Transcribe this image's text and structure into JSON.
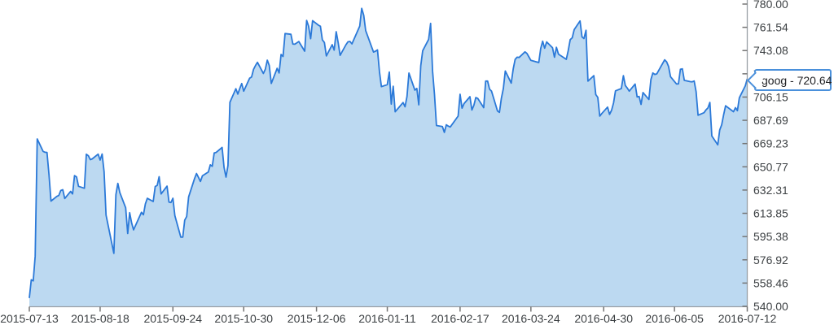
{
  "chart_data": {
    "type": "area",
    "title": "",
    "grid": false,
    "legend": false,
    "x_axis": {
      "range": [
        "2015-07-13",
        "2016-07-12"
      ],
      "tick_labels": [
        "2015-07-13",
        "2015-08-18",
        "2015-09-24",
        "2015-10-30",
        "2015-12-06",
        "2016-01-11",
        "2016-02-17",
        "2016-03-24",
        "2016-04-30",
        "2016-06-05",
        "2016-07-12"
      ]
    },
    "y_axis": {
      "range": [
        540,
        780
      ],
      "tick_labels": [
        "780.00",
        "761.54",
        "743.08",
        "724.62",
        "706.15",
        "687.69",
        "669.23",
        "650.77",
        "632.31",
        "613.85",
        "595.38",
        "576.92",
        "558.46",
        "540.00"
      ]
    },
    "series": [
      {
        "name": "goog",
        "dates": [
          "2015-07-13",
          "2015-07-14",
          "2015-07-15",
          "2015-07-16",
          "2015-07-17",
          "2015-07-20",
          "2015-07-21",
          "2015-07-22",
          "2015-07-23",
          "2015-07-24",
          "2015-07-27",
          "2015-07-28",
          "2015-07-29",
          "2015-07-30",
          "2015-07-31",
          "2015-08-03",
          "2015-08-04",
          "2015-08-05",
          "2015-08-06",
          "2015-08-07",
          "2015-08-10",
          "2015-08-11",
          "2015-08-12",
          "2015-08-13",
          "2015-08-14",
          "2015-08-17",
          "2015-08-18",
          "2015-08-19",
          "2015-08-20",
          "2015-08-21",
          "2015-08-24",
          "2015-08-25",
          "2015-08-26",
          "2015-08-27",
          "2015-08-28",
          "2015-08-31",
          "2015-09-01",
          "2015-09-02",
          "2015-09-03",
          "2015-09-04",
          "2015-09-08",
          "2015-09-09",
          "2015-09-10",
          "2015-09-11",
          "2015-09-14",
          "2015-09-15",
          "2015-09-16",
          "2015-09-17",
          "2015-09-18",
          "2015-09-21",
          "2015-09-22",
          "2015-09-23",
          "2015-09-24",
          "2015-09-25",
          "2015-09-28",
          "2015-09-29",
          "2015-09-30",
          "2015-10-01",
          "2015-10-02",
          "2015-10-05",
          "2015-10-06",
          "2015-10-07",
          "2015-10-08",
          "2015-10-09",
          "2015-10-12",
          "2015-10-13",
          "2015-10-14",
          "2015-10-15",
          "2015-10-16",
          "2015-10-19",
          "2015-10-20",
          "2015-10-21",
          "2015-10-22",
          "2015-10-23",
          "2015-10-26",
          "2015-10-27",
          "2015-10-28",
          "2015-10-29",
          "2015-10-30",
          "2015-11-02",
          "2015-11-03",
          "2015-11-04",
          "2015-11-05",
          "2015-11-06",
          "2015-11-09",
          "2015-11-10",
          "2015-11-11",
          "2015-11-12",
          "2015-11-13",
          "2015-11-16",
          "2015-11-17",
          "2015-11-18",
          "2015-11-19",
          "2015-11-20",
          "2015-11-23",
          "2015-11-24",
          "2015-11-25",
          "2015-11-27",
          "2015-11-30",
          "2015-12-01",
          "2015-12-02",
          "2015-12-03",
          "2015-12-04",
          "2015-12-07",
          "2015-12-08",
          "2015-12-09",
          "2015-12-10",
          "2015-12-11",
          "2015-12-14",
          "2015-12-15",
          "2015-12-16",
          "2015-12-17",
          "2015-12-18",
          "2015-12-21",
          "2015-12-22",
          "2015-12-23",
          "2015-12-24",
          "2015-12-28",
          "2015-12-29",
          "2015-12-30",
          "2015-12-31",
          "2016-01-04",
          "2016-01-05",
          "2016-01-06",
          "2016-01-07",
          "2016-01-08",
          "2016-01-11",
          "2016-01-12",
          "2016-01-13",
          "2016-01-14",
          "2016-01-15",
          "2016-01-19",
          "2016-01-20",
          "2016-01-21",
          "2016-01-22",
          "2016-01-25",
          "2016-01-26",
          "2016-01-27",
          "2016-01-28",
          "2016-01-29",
          "2016-02-01",
          "2016-02-02",
          "2016-02-03",
          "2016-02-04",
          "2016-02-05",
          "2016-02-08",
          "2016-02-09",
          "2016-02-10",
          "2016-02-11",
          "2016-02-12",
          "2016-02-16",
          "2016-02-17",
          "2016-02-18",
          "2016-02-19",
          "2016-02-22",
          "2016-02-23",
          "2016-02-24",
          "2016-02-25",
          "2016-02-26",
          "2016-02-29",
          "2016-03-01",
          "2016-03-02",
          "2016-03-03",
          "2016-03-04",
          "2016-03-07",
          "2016-03-08",
          "2016-03-09",
          "2016-03-10",
          "2016-03-11",
          "2016-03-14",
          "2016-03-15",
          "2016-03-16",
          "2016-03-17",
          "2016-03-18",
          "2016-03-21",
          "2016-03-22",
          "2016-03-23",
          "2016-03-24",
          "2016-03-28",
          "2016-03-29",
          "2016-03-30",
          "2016-03-31",
          "2016-04-01",
          "2016-04-04",
          "2016-04-05",
          "2016-04-06",
          "2016-04-07",
          "2016-04-08",
          "2016-04-11",
          "2016-04-12",
          "2016-04-13",
          "2016-04-14",
          "2016-04-15",
          "2016-04-18",
          "2016-04-19",
          "2016-04-20",
          "2016-04-21",
          "2016-04-22",
          "2016-04-25",
          "2016-04-26",
          "2016-04-27",
          "2016-04-28",
          "2016-04-29",
          "2016-05-02",
          "2016-05-03",
          "2016-05-04",
          "2016-05-05",
          "2016-05-06",
          "2016-05-09",
          "2016-05-10",
          "2016-05-11",
          "2016-05-12",
          "2016-05-13",
          "2016-05-16",
          "2016-05-17",
          "2016-05-18",
          "2016-05-19",
          "2016-05-20",
          "2016-05-23",
          "2016-05-24",
          "2016-05-25",
          "2016-05-26",
          "2016-05-27",
          "2016-05-31",
          "2016-06-01",
          "2016-06-02",
          "2016-06-03",
          "2016-06-06",
          "2016-06-07",
          "2016-06-08",
          "2016-06-09",
          "2016-06-10",
          "2016-06-13",
          "2016-06-14",
          "2016-06-15",
          "2016-06-16",
          "2016-06-17",
          "2016-06-20",
          "2016-06-21",
          "2016-06-22",
          "2016-06-23",
          "2016-06-24",
          "2016-06-27",
          "2016-06-28",
          "2016-06-29",
          "2016-06-30",
          "2016-07-01",
          "2016-07-05",
          "2016-07-06",
          "2016-07-07",
          "2016-07-08",
          "2016-07-11",
          "2016-07-12"
        ],
        "values": [
          546.55,
          561.1,
          560.22,
          579.85,
          672.93,
          663.02,
          662.3,
          662.1,
          644.28,
          623.56,
          627.26,
          628.0,
          631.93,
          632.59,
          625.61,
          631.21,
          629.25,
          643.78,
          642.68,
          635.3,
          633.73,
          660.78,
          659.56,
          656.45,
          657.12,
          660.87,
          656.13,
          660.9,
          646.83,
          612.48,
          589.61,
          582.06,
          628.62,
          637.61,
          630.38,
          618.25,
          597.79,
          614.34,
          606.25,
          600.7,
          614.66,
          612.72,
          621.35,
          625.77,
          623.24,
          635.14,
          635.98,
          642.9,
          629.25,
          635.44,
          622.69,
          622.36,
          625.8,
          611.97,
          594.89,
          594.97,
          608.42,
          611.29,
          626.91,
          641.47,
          645.44,
          642.36,
          639.16,
          643.61,
          646.67,
          652.3,
          651.16,
          661.74,
          662.2,
          666.1,
          650.28,
          642.61,
          651.79,
          702.0,
          712.78,
          708.49,
          712.95,
          716.92,
          710.81,
          721.11,
          722.16,
          728.11,
          731.25,
          733.76,
          724.89,
          728.32,
          735.4,
          731.23,
          717.0,
          728.96,
          725.3,
          740.0,
          738.41,
          756.6,
          755.98,
          748.28,
          748.15,
          750.26,
          742.6,
          767.04,
          762.38,
          752.54,
          766.81,
          763.25,
          762.37,
          751.61,
          749.46,
          738.87,
          747.77,
          743.4,
          758.09,
          749.43,
          739.31,
          747.77,
          750.0,
          750.31,
          748.4,
          762.51,
          776.6,
          771.0,
          758.88,
          741.84,
          742.58,
          743.62,
          726.39,
          714.47,
          716.03,
          726.07,
          700.56,
          714.72,
          694.45,
          701.79,
          698.45,
          706.59,
          725.25,
          711.67,
          713.04,
          699.99,
          730.96,
          742.95,
          752.0,
          764.65,
          726.95,
          708.01,
          683.57,
          682.74,
          678.11,
          684.12,
          683.11,
          682.4,
          691.0,
          708.4,
          697.35,
          700.91,
          706.46,
          695.85,
          699.56,
          705.75,
          705.07,
          697.77,
          718.81,
          718.85,
          712.42,
          710.89,
          695.16,
          693.97,
          705.24,
          712.82,
          726.82,
          717.24,
          728.33,
          736.09,
          737.78,
          737.6,
          742.09,
          740.75,
          738.06,
          735.3,
          733.53,
          744.77,
          750.53,
          744.95,
          749.91,
          745.29,
          737.8,
          745.69,
          740.28,
          739.15,
          736.1,
          743.09,
          751.72,
          753.2,
          759.66,
          766.61,
          753.93,
          752.67,
          759.14,
          718.77,
          723.15,
          708.14,
          705.84,
          691.02,
          693.01,
          698.21,
          692.36,
          695.7,
          701.43,
          711.12,
          712.9,
          723.18,
          715.29,
          713.31,
          710.83,
          716.49,
          706.23,
          706.63,
          700.32,
          709.74,
          704.24,
          720.09,
          725.27,
          724.12,
          724.55,
          735.72,
          734.15,
          730.4,
          722.34,
          716.55,
          716.65,
          728.28,
          728.58,
          719.41,
          718.36,
          718.27,
          718.92,
          710.36,
          691.72,
          693.71,
          695.94,
          697.46,
          701.87,
          675.22,
          668.26,
          680.04,
          684.11,
          692.1,
          699.21,
          694.49,
          697.77,
          695.36,
          705.63,
          715.09,
          720.64
        ]
      }
    ]
  },
  "tooltip": {
    "label": "goog - 720.64"
  },
  "colors": {
    "line": "#2b79d8",
    "fill": "#bcd9f1",
    "axis_line": "#9aa0a6",
    "tick_mark": "#757575",
    "axis_label": "#3c4043",
    "tooltip_border": "#4a90db",
    "tooltip_text": "#202124"
  }
}
